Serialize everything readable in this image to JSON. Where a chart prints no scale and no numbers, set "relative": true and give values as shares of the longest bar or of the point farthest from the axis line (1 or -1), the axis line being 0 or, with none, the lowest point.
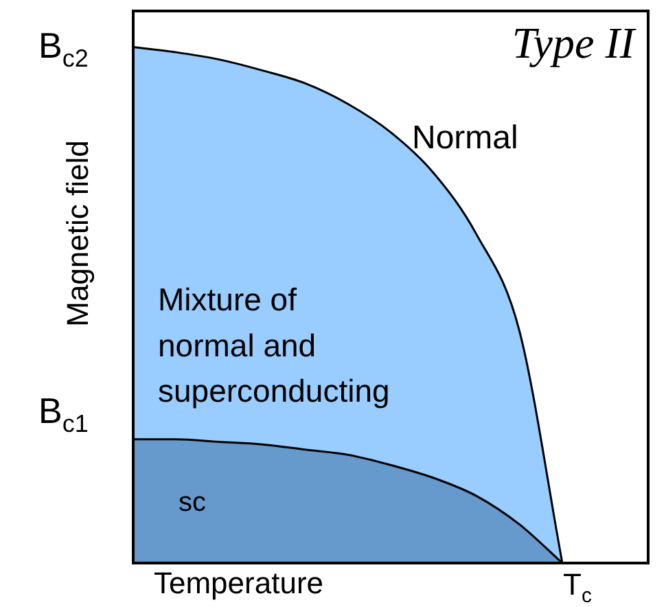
{
  "chart_data": {
    "type": "area",
    "relative": true,
    "title": "Type II",
    "xlabel": "Temperature",
    "ylabel": "Magnetic field",
    "categories": [
      null,
      null,
      null,
      null,
      null,
      null,
      null,
      null,
      null,
      null,
      null,
      null,
      null
    ],
    "series": [
      {
        "color": "#99ccff",
        "values": [
          1,
          0.99,
          0.976,
          0.955,
          0.93,
          0.89,
          0.835,
          0.756,
          0.637,
          0.45,
          0,
          null,
          null
        ]
      },
      {
        "color": "#6699cc",
        "values": [
          0.24,
          0.24,
          0.235,
          0.23,
          0.22,
          0.21,
          0.19,
          0.165,
          0.13,
          0.075,
          0,
          null,
          null
        ]
      }
    ],
    "annotations": [
      "Normal",
      "Mixture of\nnormal and\nsuperconducting",
      "sc",
      "B$_{c2}$",
      "B$_{c1}$",
      "T$_{c}$"
    ],
    "legend": false
  }
}
